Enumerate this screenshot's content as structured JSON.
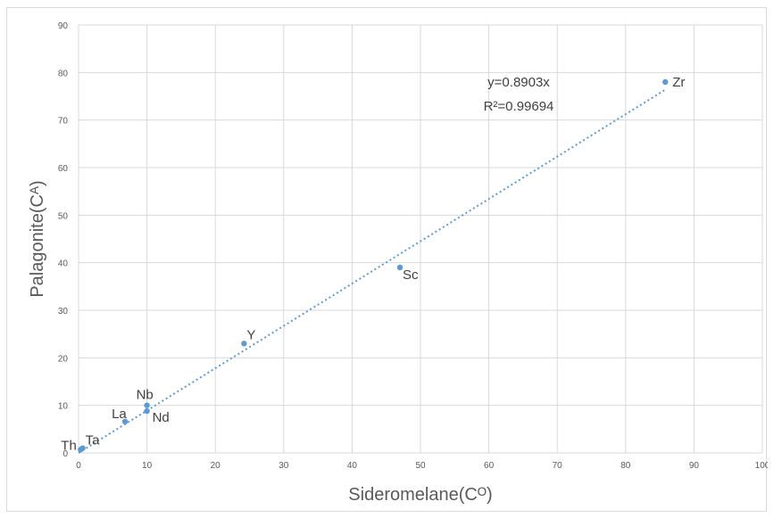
{
  "chart_data": {
    "type": "scatter",
    "xlabel": "Sideromelane\u001f(Cᴼ)",
    "ylabel": "Palagonite\u001f(Cᴬ)",
    "xlim": [
      0,
      100
    ],
    "ylim": [
      0,
      90
    ],
    "x_ticks": [
      "0",
      "10",
      "20",
      "30",
      "40",
      "50",
      "60",
      "70",
      "80",
      "90",
      "100"
    ],
    "y_ticks": [
      "0",
      "10",
      "20",
      "30",
      "40",
      "50",
      "60",
      "70",
      "80",
      "90"
    ],
    "grid": true,
    "points": [
      {
        "label": "Th",
        "x": 0.3,
        "y": 0.7
      },
      {
        "label": "Ta",
        "x": 0.6,
        "y": 1.0
      },
      {
        "label": "La",
        "x": 6.8,
        "y": 6.6
      },
      {
        "label": "Nb",
        "x": 10.0,
        "y": 10.0
      },
      {
        "label": "Nd",
        "x": 10.0,
        "y": 8.8
      },
      {
        "label": "Y",
        "x": 24.2,
        "y": 23.0
      },
      {
        "label": "Sc",
        "x": 47.0,
        "y": 39.0
      },
      {
        "label": "Zr",
        "x": 85.8,
        "y": 78.0
      }
    ],
    "trendline": {
      "slope": 0.8903,
      "x_range": [
        0,
        85.8
      ],
      "style": "dotted"
    },
    "equation": "y\u001f=\u001f0.8903x",
    "r_squared": "R²\u001f=\u001f0.99694",
    "colors": {
      "points": "#5b9bd5",
      "trendline": "#5b9bd5",
      "grid": "#d9d9d9",
      "text": "#595959"
    }
  }
}
